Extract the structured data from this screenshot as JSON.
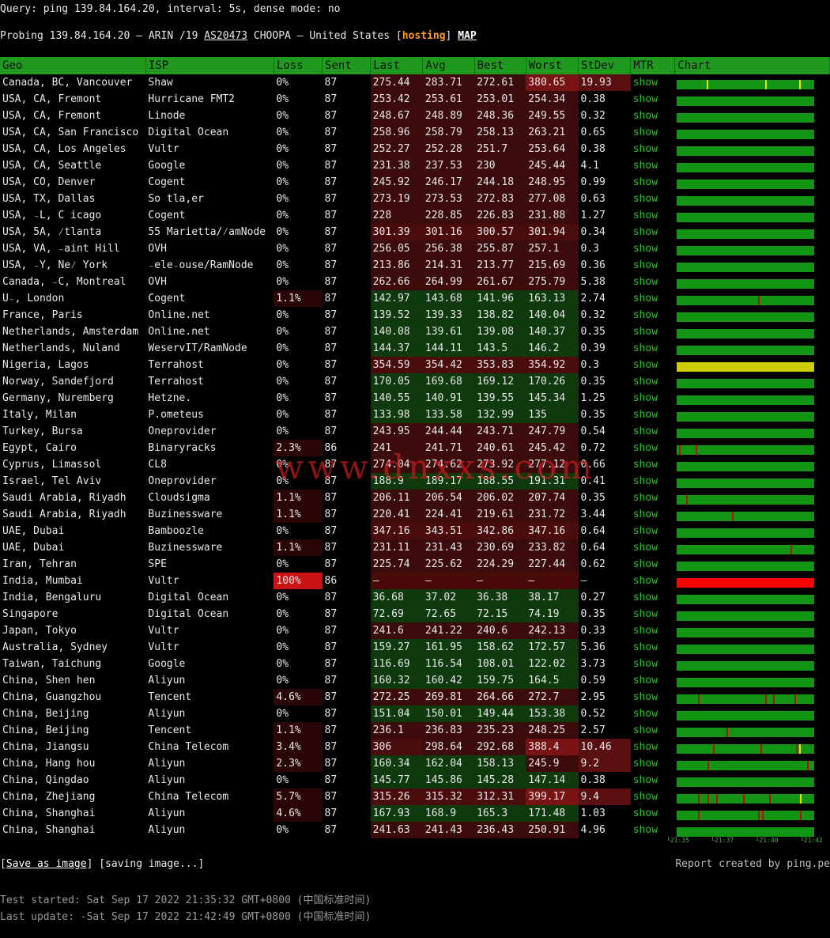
{
  "header": {
    "query": "Query: ping 139.84.164.20, interval: 5s, dense mode: no",
    "probe_prefix": "Probing 139.84.164.20 — ARIN /19 ",
    "asn": "AS20473",
    "probe_mid": " CHOOPA — United States [",
    "hosting": "hosting",
    "probe_end": "] ",
    "map": "MAP"
  },
  "columns": [
    "Geo",
    "ISP",
    "Loss",
    "Sent",
    "Last",
    "Avg",
    "Best",
    "Worst",
    "StDev",
    "MTR",
    "Chart"
  ],
  "colors": {
    "green_dark": "#0e3a0e",
    "red_dark": "#4a0a0a",
    "red_mid": "#6a1010",
    "bar_green": "#149414",
    "bar_yellow": "#cccc00",
    "bar_red": "#ff0000",
    "header_green": "#1f9a1f"
  },
  "rows": [
    {
      "geo": "Canada, BC, Vancouver",
      "isp": "Shaw",
      "loss": "0%",
      "sent": "87",
      "last": "275.44",
      "avg": "283.71",
      "best": "272.61",
      "worst": "380.65",
      "stdev": "19.93",
      "mtr": "show",
      "chart": "green",
      "ticks": [
        {
          "p": 0.22,
          "c": "y"
        },
        {
          "p": 0.65,
          "c": "y"
        },
        {
          "p": 0.9,
          "c": "y"
        }
      ]
    },
    {
      "geo": "USA, CA, Fremont",
      "isp": "Hurricane FMT2",
      "loss": "0%",
      "sent": "87",
      "last": "253.42",
      "avg": "253.61",
      "best": "253.01",
      "worst": "254.34",
      "stdev": "0.38",
      "mtr": "show",
      "chart": "green",
      "ticks": []
    },
    {
      "geo": "USA, CA, Fremont",
      "isp": "Linode",
      "loss": "0%",
      "sent": "87",
      "last": "248.67",
      "avg": "248.89",
      "best": "248.36",
      "worst": "249.55",
      "stdev": "0.32",
      "mtr": "show",
      "chart": "green",
      "ticks": []
    },
    {
      "geo": "USA, CA, San Francisco",
      "isp": "Digital Ocean",
      "loss": "0%",
      "sent": "87",
      "last": "258.96",
      "avg": "258.79",
      "best": "258.13",
      "worst": "263.21",
      "stdev": "0.65",
      "mtr": "show",
      "chart": "green",
      "ticks": []
    },
    {
      "geo": "USA, CA, Los Angeles",
      "isp": "Vultr",
      "loss": "0%",
      "sent": "87",
      "last": "252.27",
      "avg": "252.28",
      "best": "251.7",
      "worst": "253.64",
      "stdev": "0.38",
      "mtr": "show",
      "chart": "green",
      "ticks": []
    },
    {
      "geo": "USA, CA, Seattle",
      "isp": "Google",
      "loss": "0%",
      "sent": "87",
      "last": "231.38",
      "avg": "237.53",
      "best": "230",
      "worst": "245.44",
      "stdev": "4.1",
      "mtr": "show",
      "chart": "green",
      "ticks": []
    },
    {
      "geo": "USA, CO, Denver",
      "isp": "Cogent",
      "loss": "0%",
      "sent": "87",
      "last": "245.92",
      "avg": "246.17",
      "best": "244.18",
      "worst": "248.95",
      "stdev": "0.99",
      "mtr": "show",
      "chart": "green",
      "ticks": []
    },
    {
      "geo": "USA, TX, Dallas",
      "isp": "So tla,er",
      "loss": "0%",
      "sent": "87",
      "last": "273.19",
      "avg": "273.53",
      "best": "272.83",
      "worst": "277.08",
      "stdev": "0.63",
      "mtr": "show",
      "chart": "green",
      "ticks": []
    },
    {
      "geo": "USA, ₋L, C icago",
      "isp": "Cogent",
      "loss": "0%",
      "sent": "87",
      "last": "228",
      "avg": "228.85",
      "best": "226.83",
      "worst": "231.88",
      "stdev": "1.27",
      "mtr": "show",
      "chart": "green",
      "ticks": []
    },
    {
      "geo": "USA, 5A, ⁄tlanta",
      "isp": "55 Marietta/⁄amNode",
      "loss": "0%",
      "sent": "87",
      "last": "301.39",
      "avg": "301.16",
      "best": "300.57",
      "worst": "301.94",
      "stdev": "0.34",
      "mtr": "show",
      "chart": "green",
      "ticks": []
    },
    {
      "geo": "USA, VA, ₋aint Hill",
      "isp": "OVH",
      "loss": "0%",
      "sent": "87",
      "last": "256.05",
      "avg": "256.38",
      "best": "255.87",
      "worst": "257.1",
      "stdev": "0.3",
      "mtr": "show",
      "chart": "green",
      "ticks": []
    },
    {
      "geo": "USA, ₋Y, Ne⁄ York",
      "isp": "₋ele₋ouse/RamNode",
      "loss": "0%",
      "sent": "87",
      "last": "213.86",
      "avg": "214.31",
      "best": "213.77",
      "worst": "215.69",
      "stdev": "0.36",
      "mtr": "show",
      "chart": "green",
      "ticks": []
    },
    {
      "geo": "Canada, ₋C, Montreal",
      "isp": "OVH",
      "loss": "0%",
      "sent": "87",
      "last": "262.66",
      "avg": "264.99",
      "best": "261.67",
      "worst": "275.79",
      "stdev": "5.38",
      "mtr": "show",
      "chart": "green",
      "ticks": []
    },
    {
      "geo": "U₋, London",
      "isp": "Cogent",
      "loss": "1.1%",
      "sent": "87",
      "last": "142.97",
      "avg": "143.68",
      "best": "141.96",
      "worst": "163.13",
      "stdev": "2.74",
      "mtr": "show",
      "chart": "green",
      "ticks": [
        {
          "p": 0.6,
          "c": "r"
        }
      ]
    },
    {
      "geo": "France, Paris",
      "isp": "Online.net",
      "loss": "0%",
      "sent": "87",
      "last": "139.52",
      "avg": "139.33",
      "best": "138.82",
      "worst": "140.04",
      "stdev": "0.32",
      "mtr": "show",
      "chart": "green",
      "ticks": []
    },
    {
      "geo": "Netherlands, Amsterdam",
      "isp": "Online.net",
      "loss": "0%",
      "sent": "87",
      "last": "140.08",
      "avg": "139.61",
      "best": "139.08",
      "worst": "140.37",
      "stdev": "0.35",
      "mtr": "show",
      "chart": "green",
      "ticks": []
    },
    {
      "geo": "Netherlands, Nuland",
      "isp": "WeservIT/RamNode",
      "loss": "0%",
      "sent": "87",
      "last": "144.37",
      "avg": "144.11",
      "best": "143.5",
      "worst": "146.2",
      "stdev": "0.39",
      "mtr": "show",
      "chart": "green",
      "ticks": []
    },
    {
      "geo": "Nigeria, Lagos",
      "isp": "Terrahost",
      "loss": "0%",
      "sent": "87",
      "last": "354.59",
      "avg": "354.42",
      "best": "353.83",
      "worst": "354.92",
      "stdev": "0.3",
      "mtr": "show",
      "chart": "yellow",
      "ticks": []
    },
    {
      "geo": "Norway, Sandefjord",
      "isp": "Terrahost",
      "loss": "0%",
      "sent": "87",
      "last": "170.05",
      "avg": "169.68",
      "best": "169.12",
      "worst": "170.26",
      "stdev": "0.35",
      "mtr": "show",
      "chart": "green",
      "ticks": []
    },
    {
      "geo": "Germany, Nuremberg",
      "isp": "Hetzne.",
      "loss": "0%",
      "sent": "87",
      "last": "140.55",
      "avg": "140.91",
      "best": "139.55",
      "worst": "145.34",
      "stdev": "1.25",
      "mtr": "show",
      "chart": "green",
      "ticks": []
    },
    {
      "geo": "Italy, Milan",
      "isp": "P.ometeus",
      "loss": "0%",
      "sent": "87",
      "last": "133.98",
      "avg": "133.58",
      "best": "132.99",
      "worst": "135",
      "stdev": "0.35",
      "mtr": "show",
      "chart": "green",
      "ticks": []
    },
    {
      "geo": "Turkey, Bursa",
      "isp": "Oneprovider",
      "loss": "0%",
      "sent": "87",
      "last": "243.95",
      "avg": "244.44",
      "best": "243.71",
      "worst": "247.79",
      "stdev": "0.54",
      "mtr": "show",
      "chart": "green",
      "ticks": []
    },
    {
      "geo": "Egypt, Cairo",
      "isp": "Binaryracks",
      "loss": "2.3%",
      "sent": "86",
      "last": "241",
      "avg": "241.71",
      "best": "240.61",
      "worst": "245.42",
      "stdev": "0.72",
      "mtr": "show",
      "chart": "green",
      "ticks": [
        {
          "p": 0.02,
          "c": "r"
        },
        {
          "p": 0.14,
          "c": "r"
        }
      ]
    },
    {
      "geo": "Cyprus, Limassol",
      "isp": "CL8",
      "loss": "0%",
      "sent": "87",
      "last": "274.04",
      "avg": "274.62",
      "best": "273.92",
      "worst": "277.12",
      "stdev": "0.66",
      "mtr": "show",
      "chart": "green",
      "ticks": []
    },
    {
      "geo": "Israel, Tel Aviv",
      "isp": "Oneprovider",
      "loss": "0%",
      "sent": "87",
      "last": "188.9",
      "avg": "189.17",
      "best": "188.55",
      "worst": "191.31",
      "stdev": "0.41",
      "mtr": "show",
      "chart": "green",
      "ticks": []
    },
    {
      "geo": "Saudi Arabia, Riyadh",
      "isp": "Cloudsigma",
      "loss": "1.1%",
      "sent": "87",
      "last": "206.11",
      "avg": "206.54",
      "best": "206.02",
      "worst": "207.74",
      "stdev": "0.35",
      "mtr": "show",
      "chart": "green",
      "ticks": [
        {
          "p": 0.07,
          "c": "r"
        }
      ]
    },
    {
      "geo": "Saudi Arabia, Riyadh",
      "isp": "Buzinessware",
      "loss": "1.1%",
      "sent": "87",
      "last": "220.41",
      "avg": "224.41",
      "best": "219.61",
      "worst": "231.72",
      "stdev": "3.44",
      "mtr": "show",
      "chart": "green",
      "ticks": [
        {
          "p": 0.41,
          "c": "r"
        }
      ]
    },
    {
      "geo": "UAE, Dubai",
      "isp": "Bamboozle",
      "loss": "0%",
      "sent": "87",
      "last": "347.16",
      "avg": "343.51",
      "best": "342.86",
      "worst": "347.16",
      "stdev": "0.64",
      "mtr": "show",
      "chart": "green",
      "ticks": []
    },
    {
      "geo": "UAE, Dubai",
      "isp": "Buzinessware",
      "loss": "1.1%",
      "sent": "87",
      "last": "231.11",
      "avg": "231.43",
      "best": "230.69",
      "worst": "233.82",
      "stdev": "0.64",
      "mtr": "show",
      "chart": "green",
      "ticks": [
        {
          "p": 0.84,
          "c": "r"
        }
      ]
    },
    {
      "geo": "Iran, Tehran",
      "isp": "SPE",
      "loss": "0%",
      "sent": "87",
      "last": "225.74",
      "avg": "225.62",
      "best": "224.29",
      "worst": "227.44",
      "stdev": "0.62",
      "mtr": "show",
      "chart": "green",
      "ticks": []
    },
    {
      "geo": "India, Mumbai",
      "isp": "Vultr",
      "loss": "100%",
      "sent": "86",
      "last": "–",
      "avg": "–",
      "best": "–",
      "worst": "–",
      "stdev": "–",
      "mtr": "show",
      "chart": "red",
      "ticks": []
    },
    {
      "geo": "India, Bengaluru",
      "isp": "Digital Ocean",
      "loss": "0%",
      "sent": "87",
      "last": "36.68",
      "avg": "37.02",
      "best": "36.38",
      "worst": "38.17",
      "stdev": "0.27",
      "mtr": "show",
      "chart": "green",
      "ticks": []
    },
    {
      "geo": "Singapore",
      "isp": "Digital Ocean",
      "loss": "0%",
      "sent": "87",
      "last": "72.69",
      "avg": "72.65",
      "best": "72.15",
      "worst": "74.19",
      "stdev": "0.35",
      "mtr": "show",
      "chart": "green",
      "ticks": []
    },
    {
      "geo": "Japan, Tokyo",
      "isp": "Vultr",
      "loss": "0%",
      "sent": "87",
      "last": "241.6",
      "avg": "241.22",
      "best": "240.6",
      "worst": "242.13",
      "stdev": "0.33",
      "mtr": "show",
      "chart": "green",
      "ticks": []
    },
    {
      "geo": "Australia, Sydney",
      "isp": "Vultr",
      "loss": "0%",
      "sent": "87",
      "last": "159.27",
      "avg": "161.95",
      "best": "158.62",
      "worst": "172.57",
      "stdev": "5.36",
      "mtr": "show",
      "chart": "green",
      "ticks": []
    },
    {
      "geo": "Taiwan, Taichung",
      "isp": "Google",
      "loss": "0%",
      "sent": "87",
      "last": "116.69",
      "avg": "116.54",
      "best": "108.01",
      "worst": "122.02",
      "stdev": "3.73",
      "mtr": "show",
      "chart": "green",
      "ticks": []
    },
    {
      "geo": "China, Shen hen",
      "isp": "Aliyun",
      "loss": "0%",
      "sent": "87",
      "last": "160.32",
      "avg": "160.42",
      "best": "159.75",
      "worst": "164.5",
      "stdev": "0.59",
      "mtr": "show",
      "chart": "green",
      "ticks": []
    },
    {
      "geo": "China, Guangzhou",
      "isp": "Tencent",
      "loss": "4.6%",
      "sent": "87",
      "last": "272.25",
      "avg": "269.81",
      "best": "264.66",
      "worst": "272.7",
      "stdev": "2.95",
      "mtr": "show",
      "chart": "green",
      "ticks": [
        {
          "p": 0.16,
          "c": "r"
        },
        {
          "p": 0.65,
          "c": "r"
        },
        {
          "p": 0.71,
          "c": "r"
        },
        {
          "p": 0.87,
          "c": "r"
        }
      ]
    },
    {
      "geo": "China, Beijing",
      "isp": "Aliyun",
      "loss": "0%",
      "sent": "87",
      "last": "151.04",
      "avg": "150.01",
      "best": "149.44",
      "worst": "153.38",
      "stdev": "0.52",
      "mtr": "show",
      "chart": "green",
      "ticks": []
    },
    {
      "geo": "China, Beijing",
      "isp": "Tencent",
      "loss": "1.1%",
      "sent": "87",
      "last": "236.1",
      "avg": "236.83",
      "best": "235.23",
      "worst": "248.25",
      "stdev": "2.57",
      "mtr": "show",
      "chart": "green",
      "ticks": [
        {
          "p": 0.37,
          "c": "r"
        }
      ]
    },
    {
      "geo": "China, Jiangsu",
      "isp": "China Telecom",
      "loss": "3.4%",
      "sent": "87",
      "last": "306",
      "avg": "298.64",
      "best": "292.68",
      "worst": "388.4",
      "stdev": "10.46",
      "mtr": "show",
      "chart": "green",
      "ticks": [
        {
          "p": 0.27,
          "c": "r"
        },
        {
          "p": 0.62,
          "c": "r"
        },
        {
          "p": 0.88,
          "c": "r"
        },
        {
          "p": 0.9,
          "c": "y"
        }
      ]
    },
    {
      "geo": "China, Hang hou",
      "isp": "Aliyun",
      "loss": "2.3%",
      "sent": "87",
      "last": "160.34",
      "avg": "162.04",
      "best": "158.13",
      "worst": "245.9",
      "stdev": "9.2",
      "mtr": "show",
      "chart": "green",
      "ticks": [
        {
          "p": 0.23,
          "c": "r"
        },
        {
          "p": 0.96,
          "c": "r"
        }
      ]
    },
    {
      "geo": "China, Qingdao",
      "isp": "Aliyun",
      "loss": "0%",
      "sent": "87",
      "last": "145.77",
      "avg": "145.86",
      "best": "145.28",
      "worst": "147.14",
      "stdev": "0.38",
      "mtr": "show",
      "chart": "green",
      "ticks": []
    },
    {
      "geo": "China, Zhejiang",
      "isp": "China Telecom",
      "loss": "5.7%",
      "sent": "87",
      "last": "315.26",
      "avg": "315.32",
      "best": "312.31",
      "worst": "399.17",
      "stdev": "9.4",
      "mtr": "show",
      "chart": "green",
      "ticks": [
        {
          "p": 0.16,
          "c": "r"
        },
        {
          "p": 0.23,
          "c": "r"
        },
        {
          "p": 0.29,
          "c": "r"
        },
        {
          "p": 0.49,
          "c": "r"
        },
        {
          "p": 0.68,
          "c": "r"
        },
        {
          "p": 0.91,
          "c": "y"
        }
      ]
    },
    {
      "geo": "China, Shanghai",
      "isp": "Aliyun",
      "loss": "4.6%",
      "sent": "87",
      "last": "167.93",
      "avg": "168.9",
      "best": "165.3",
      "worst": "171.48",
      "stdev": "1.03",
      "mtr": "show",
      "chart": "green",
      "ticks": [
        {
          "p": 0.16,
          "c": "r"
        },
        {
          "p": 0.6,
          "c": "r"
        },
        {
          "p": 0.63,
          "c": "r"
        },
        {
          "p": 0.91,
          "c": "r"
        }
      ]
    },
    {
      "geo": "China, Shanghai",
      "isp": "Aliyun",
      "loss": "0%",
      "sent": "87",
      "last": "241.63",
      "avg": "241.43",
      "best": "236.43",
      "worst": "250.91",
      "stdev": "4.96",
      "mtr": "show",
      "chart": "green",
      "ticks": []
    }
  ],
  "axis_labels": [
    "21:35",
    "21:37",
    "21:40",
    "21:42"
  ],
  "footer": {
    "save_label": "Save as image",
    "saving": "[saving image...]",
    "report": "Report created by ping.pe",
    "started": "Test started: Sat Sep 17 2022 21:35:32 GMT+0800 (中国标准时间)",
    "updated": "Last update: -Sat Sep 17 2022 21:42:49 GMT+0800 (中国标准时间)"
  },
  "watermark": "www.dnxxs.com"
}
